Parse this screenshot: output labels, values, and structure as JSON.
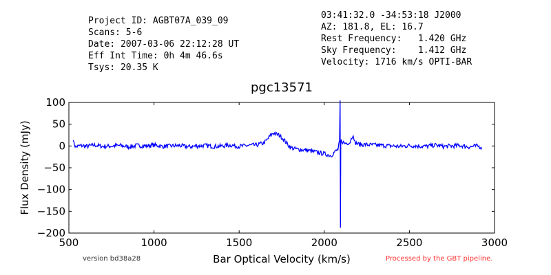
{
  "header_left": [
    "Project ID: AGBT07A_039_09",
    "Scans: 5-6",
    "Date: 2007-03-06 22:12:28 UT",
    "Eff Int Time: 0h 4m 46.6s",
    "Tsys: 20.35 K"
  ],
  "header_right": [
    "03:41:32.0 -34:53:18 J2000",
    "AZ: 181.8, EL: 16.7",
    "Rest Frequency:   1.420 GHz",
    "Sky Frequency:    1.412 GHz",
    "Velocity: 1716 km/s OPTI-BAR"
  ],
  "footer": {
    "version": "version bd38a28",
    "processed": "Processed by the GBT pipeline."
  },
  "colors": {
    "series": "#0000ff",
    "processed": "#ff3333",
    "version": "#333333"
  },
  "chart_data": {
    "type": "line",
    "title": "pgc13571",
    "xlabel": "Bar Optical Velocity (km/s)",
    "ylabel": "Flux Density (mJy)",
    "xlim": [
      500,
      3000
    ],
    "ylim": [
      -200,
      100
    ],
    "xticks": [
      500,
      1000,
      1500,
      2000,
      2500,
      3000
    ],
    "yticks": [
      -200,
      -150,
      -100,
      -50,
      0,
      50,
      100
    ],
    "grid": false,
    "legend": "none",
    "series": [
      {
        "x": [
          525,
          530,
          540,
          560,
          580,
          600,
          650,
          700,
          750,
          800,
          850,
          900,
          950,
          1000,
          1050,
          1100,
          1150,
          1200,
          1250,
          1300,
          1350,
          1400,
          1450,
          1500,
          1550,
          1600,
          1640,
          1660,
          1680,
          1700,
          1720,
          1740,
          1760,
          1780,
          1800,
          1820,
          1850,
          1900,
          1950,
          2000,
          2040,
          2060,
          2080,
          2090,
          2093,
          2095,
          2097,
          2100,
          2120,
          2150,
          2170,
          2175,
          2180,
          2200,
          2250,
          2300,
          2350,
          2400,
          2450,
          2500,
          2550,
          2600,
          2650,
          2700,
          2750,
          2800,
          2850,
          2900,
          2925
        ],
        "y": [
          18,
          5,
          -2,
          0,
          1,
          -1,
          2,
          -1,
          0,
          1,
          -2,
          1,
          0,
          2,
          -1,
          0,
          1,
          -2,
          0,
          1,
          -1,
          0,
          2,
          -1,
          1,
          2,
          6,
          12,
          22,
          30,
          27,
          24,
          16,
          6,
          -3,
          -6,
          -8,
          -10,
          -14,
          -18,
          -22,
          -14,
          -8,
          10,
          100,
          -190,
          5,
          12,
          6,
          8,
          28,
          10,
          8,
          4,
          3,
          2,
          1,
          0,
          -1,
          1,
          0,
          -1,
          2,
          -1,
          0,
          1,
          -2,
          0,
          -3
        ]
      }
    ]
  }
}
